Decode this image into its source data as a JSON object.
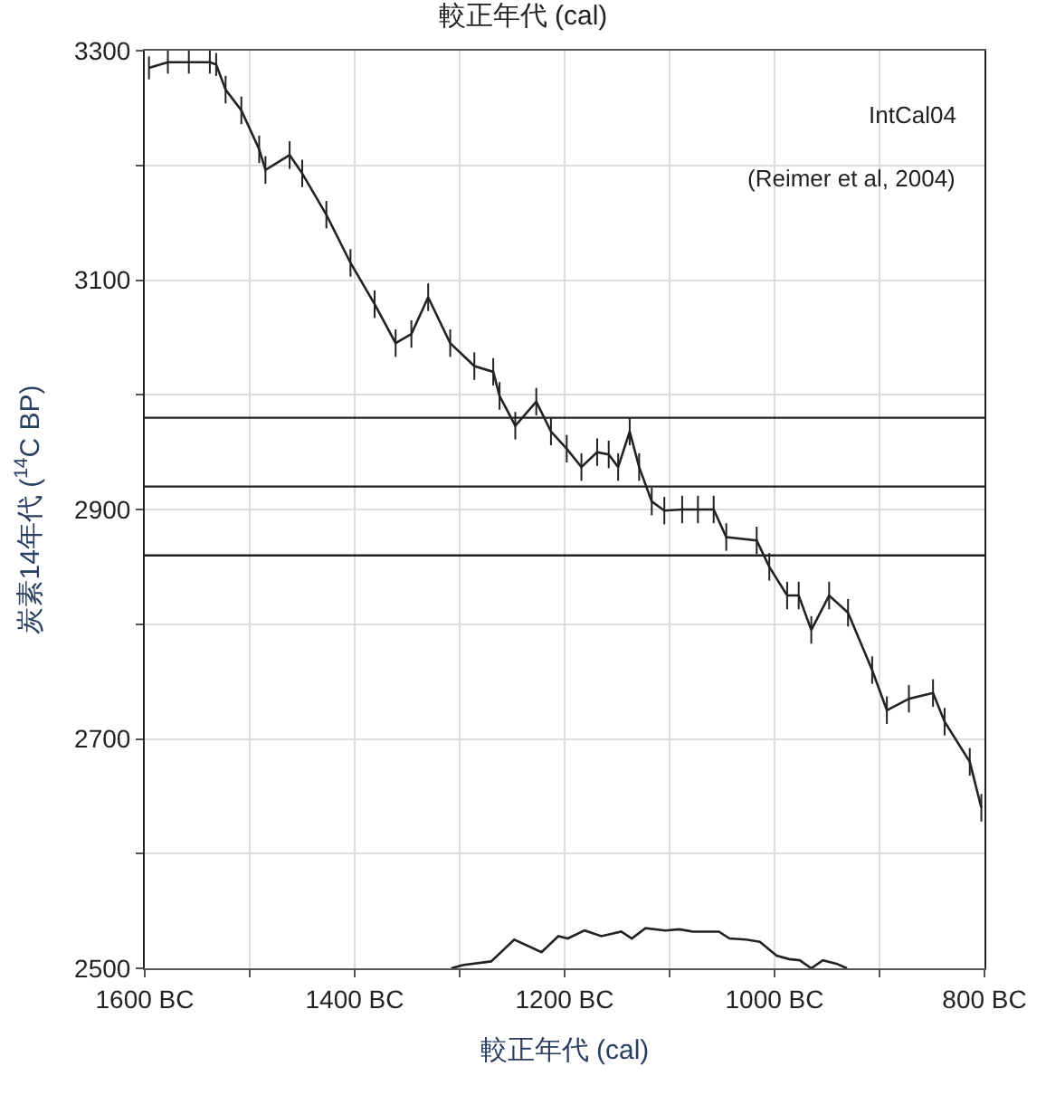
{
  "chart_data": {
    "type": "line",
    "title": "較正年代 (cal)",
    "xlabel": "較正年代 (cal)",
    "ylabel": "炭素14年代 ($^{14}$C BP)",
    "series": [
      {
        "color": "#222222",
        "marker": "none",
        "line_style": "solid",
        "x": [
          -1596,
          -1578,
          -1558,
          -1538,
          -1532,
          -1523,
          -1508,
          -1491,
          -1485,
          -1462,
          -1450,
          -1427,
          -1404,
          -1381,
          -1361,
          -1346,
          -1330,
          -1309,
          -1286,
          -1268,
          -1262,
          -1247,
          -1227,
          -1213,
          -1198,
          -1184,
          -1169,
          -1158,
          -1149,
          -1138,
          -1129,
          -1117,
          -1105,
          -1088,
          -1073,
          -1058,
          -1046,
          -1017,
          -1005,
          -988,
          -977,
          -965,
          -948,
          -930,
          -907,
          -893,
          -872,
          -849,
          -838,
          -814,
          -803
        ],
        "values": [
          3285,
          3290,
          3290,
          3290,
          3288,
          3266,
          3248,
          3214,
          3196,
          3209,
          3193,
          3157,
          3115,
          3079,
          3045,
          3053,
          3085,
          3045,
          3025,
          3020,
          2999,
          2973,
          2994,
          2968,
          2953,
          2937,
          2950,
          2948,
          2937,
          2968,
          2937,
          2907,
          2899,
          2900,
          2900,
          2900,
          2876,
          2873,
          2850,
          2825,
          2825,
          2795,
          2825,
          2810,
          2760,
          2725,
          2735,
          2740,
          2715,
          2680,
          2640
        ],
        "errors": [
          10,
          10,
          10,
          10,
          10,
          12,
          12,
          12,
          12,
          12,
          12,
          12,
          12,
          12,
          12,
          12,
          12,
          12,
          12,
          12,
          12,
          12,
          12,
          12,
          12,
          12,
          12,
          12,
          12,
          12,
          12,
          12,
          12,
          12,
          12,
          12,
          12,
          12,
          12,
          12,
          12,
          12,
          12,
          12,
          12,
          12,
          12,
          12,
          12,
          12,
          12
        ]
      },
      {
        "color": "#222222",
        "marker": "none",
        "line_style": "solid",
        "x": [
          -1308,
          -1296,
          -1270,
          -1248,
          -1222,
          -1206,
          -1197,
          -1181,
          -1165,
          -1146,
          -1136,
          -1123,
          -1104,
          -1091,
          -1078,
          -1053,
          -1043,
          -1027,
          -1014,
          -998,
          -986,
          -976,
          -965,
          -954,
          -941,
          -931
        ],
        "values": [
          2500,
          2503,
          2506,
          2525,
          2514,
          2528,
          2526,
          2533,
          2528,
          2532,
          2526,
          2535,
          2533,
          2534,
          2532,
          2532,
          2526,
          2525,
          2523,
          2511,
          2508,
          2507,
          2500,
          2507,
          2504,
          2500
        ]
      }
    ],
    "xlim": [
      -1600,
      -800
    ],
    "ylim": [
      2500,
      3300
    ],
    "xticks": [
      {
        "value": -1600,
        "label": "1600 BC"
      },
      {
        "value": -1500,
        "label": null
      },
      {
        "value": -1400,
        "label": "1400 BC"
      },
      {
        "value": -1300,
        "label": null
      },
      {
        "value": -1200,
        "label": "1200 BC"
      },
      {
        "value": -1100,
        "label": null
      },
      {
        "value": -1000,
        "label": "1000 BC"
      },
      {
        "value": -900,
        "label": null
      },
      {
        "value": -800,
        "label": "800 BC"
      }
    ],
    "yticks": [
      2500,
      {
        "value": 2600,
        "label": null
      },
      2700,
      {
        "value": 2800,
        "label": null
      },
      2900,
      {
        "value": 3000,
        "label": null
      },
      3100,
      {
        "value": 3200,
        "label": null
      },
      3300
    ],
    "ref_lines": [
      {
        "axis": "y",
        "value": 2980,
        "color": "#222222"
      },
      {
        "axis": "y",
        "value": 2920,
        "color": "#222222"
      },
      {
        "axis": "y",
        "value": 2860,
        "color": "#222222"
      }
    ],
    "annotations": [
      "IntCal04",
      "(Reimer et al, 2004)"
    ],
    "grid": true
  }
}
